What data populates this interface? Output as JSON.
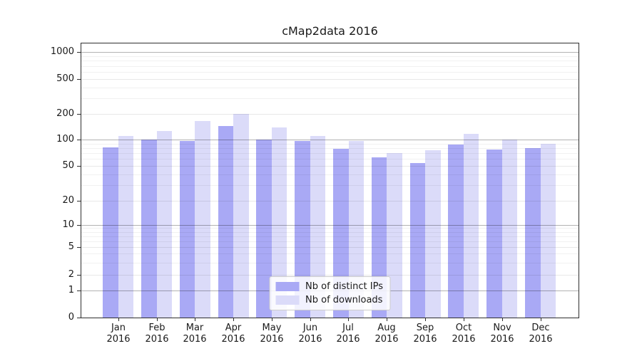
{
  "title": "cMap2data 2016",
  "legend": {
    "items": [
      {
        "label": "Nb of distinct IPs",
        "color": "#a9a9f5"
      },
      {
        "label": "Nb of downloads",
        "color": "#dbdbf9"
      }
    ]
  },
  "chart_data": {
    "type": "bar",
    "title": "cMap2data 2016",
    "categories": [
      "Jan 2016",
      "Feb 2016",
      "Mar 2016",
      "Apr 2016",
      "May 2016",
      "Jun 2016",
      "Jul 2016",
      "Aug 2016",
      "Sep 2016",
      "Oct 2016",
      "Nov 2016",
      "Dec 2016"
    ],
    "series": [
      {
        "name": "Nb of distinct IPs",
        "color": "#a9a9f5",
        "values": [
          82,
          100,
          96,
          145,
          100,
          97,
          78,
          63,
          54,
          88,
          77,
          80
        ]
      },
      {
        "name": "Nb of downloads",
        "color": "#dbdbf9",
        "values": [
          110,
          127,
          164,
          199,
          140,
          110,
          97,
          70,
          75,
          116,
          100,
          90
        ]
      }
    ],
    "xlabel": "",
    "ylabel": "",
    "yscale": "symlog",
    "y_ticks": [
      0,
      1,
      2,
      5,
      10,
      20,
      50,
      100,
      200,
      500,
      1000
    ],
    "ylim": [
      0,
      1250
    ],
    "grid": true,
    "legend_position": "lower center"
  }
}
